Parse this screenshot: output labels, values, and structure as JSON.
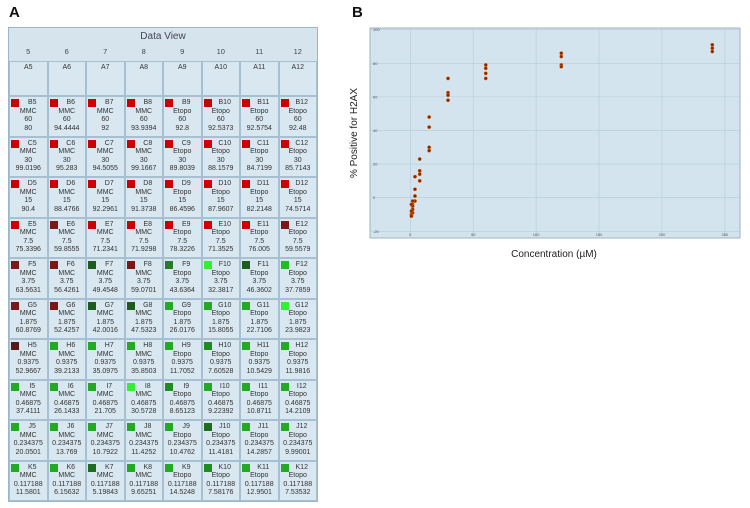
{
  "panel_labels": [
    "A",
    "B"
  ],
  "table": {
    "title": "Data View",
    "columns": [
      "5",
      "6",
      "7",
      "8",
      "9",
      "10",
      "11",
      "12"
    ],
    "row_a": [
      "A5",
      "A6",
      "A7",
      "A8",
      "A9",
      "A10",
      "A11",
      "A12"
    ],
    "rows": [
      {
        "cells": [
          {
            "name": "B5",
            "drug": "MMC",
            "conc": 60,
            "value": 80,
            "color": "#cc0000"
          },
          {
            "name": "B6",
            "drug": "MMC",
            "conc": 60,
            "value": 94.4444,
            "color": "#cc0000"
          },
          {
            "name": "B7",
            "drug": "MMC",
            "conc": 60,
            "value": 92,
            "color": "#cc0000"
          },
          {
            "name": "B8",
            "drug": "MMC",
            "conc": 60,
            "value": 93.9394,
            "color": "#cc0000"
          },
          {
            "name": "B9",
            "drug": "Etopo",
            "conc": 60,
            "value": 92.8,
            "color": "#cc0000"
          },
          {
            "name": "B10",
            "drug": "Etopo",
            "conc": 60,
            "value": 92.5373,
            "color": "#cc0000"
          },
          {
            "name": "B11",
            "drug": "Etopo",
            "conc": 60,
            "value": 92.5754,
            "color": "#cc0000"
          },
          {
            "name": "B12",
            "drug": "Etopo",
            "conc": 60,
            "value": 92.48,
            "color": "#cc0000"
          }
        ]
      },
      {
        "cells": [
          {
            "name": "C5",
            "drug": "MMC",
            "conc": 30,
            "value": 99.0196,
            "color": "#cc0000"
          },
          {
            "name": "C6",
            "drug": "MMC",
            "conc": 30,
            "value": 95.283,
            "color": "#cc0000"
          },
          {
            "name": "C7",
            "drug": "MMC",
            "conc": 30,
            "value": 94.5055,
            "color": "#cc0000"
          },
          {
            "name": "C8",
            "drug": "MMC",
            "conc": 30,
            "value": 99.1667,
            "color": "#cc0000"
          },
          {
            "name": "C9",
            "drug": "Etopo",
            "conc": 30,
            "value": 89.8039,
            "color": "#cc0000"
          },
          {
            "name": "C10",
            "drug": "Etopo",
            "conc": 30,
            "value": 88.1579,
            "color": "#cc0000"
          },
          {
            "name": "C11",
            "drug": "Etopo",
            "conc": 30,
            "value": 84.7199,
            "color": "#cc0000"
          },
          {
            "name": "C12",
            "drug": "Etopo",
            "conc": 30,
            "value": 85.7143,
            "color": "#cc0000"
          }
        ]
      },
      {
        "cells": [
          {
            "name": "D5",
            "drug": "MMC",
            "conc": 15,
            "value": 90.4,
            "color": "#cc0000"
          },
          {
            "name": "D6",
            "drug": "MMC",
            "conc": 15,
            "value": 88.4766,
            "color": "#cc0000"
          },
          {
            "name": "D7",
            "drug": "MMC",
            "conc": 15,
            "value": 92.2961,
            "color": "#cc0000"
          },
          {
            "name": "D8",
            "drug": "MMC",
            "conc": 15,
            "value": 91.3738,
            "color": "#cc0000"
          },
          {
            "name": "D9",
            "drug": "Etopo",
            "conc": 15,
            "value": 86.4596,
            "color": "#cc0000"
          },
          {
            "name": "D10",
            "drug": "Etopo",
            "conc": 15,
            "value": 87.9607,
            "color": "#cc0000"
          },
          {
            "name": "D11",
            "drug": "Etopo",
            "conc": 15,
            "value": 82.2148,
            "color": "#cc0000"
          },
          {
            "name": "D12",
            "drug": "Etopo",
            "conc": 15,
            "value": 74.5714,
            "color": "#cc0000"
          }
        ]
      },
      {
        "cells": [
          {
            "name": "E5",
            "drug": "MMC",
            "conc": 7.5,
            "value": 75.3396,
            "color": "#cc0000"
          },
          {
            "name": "E6",
            "drug": "MMC",
            "conc": 7.5,
            "value": 59.8555,
            "color": "#7a1818"
          },
          {
            "name": "E7",
            "drug": "MMC",
            "conc": 7.5,
            "value": 71.2341,
            "color": "#cc0000"
          },
          {
            "name": "E8",
            "drug": "MMC",
            "conc": 7.5,
            "value": 71.9298,
            "color": "#cc0000"
          },
          {
            "name": "E9",
            "drug": "Etopo",
            "conc": 7.5,
            "value": 78.3226,
            "color": "#cc0000"
          },
          {
            "name": "E10",
            "drug": "Etopo",
            "conc": 7.5,
            "value": 71.3525,
            "color": "#cc0000"
          },
          {
            "name": "E11",
            "drug": "Etopo",
            "conc": 7.5,
            "value": 76.005,
            "color": "#cc0000"
          },
          {
            "name": "E12",
            "drug": "Etopo",
            "conc": 7.5,
            "value": 59.5579,
            "color": "#7a1818"
          }
        ]
      },
      {
        "cells": [
          {
            "name": "F5",
            "drug": "MMC",
            "conc": 3.75,
            "value": 63.5631,
            "color": "#7a1818"
          },
          {
            "name": "F6",
            "drug": "MMC",
            "conc": 3.75,
            "value": 56.4261,
            "color": "#7a1818"
          },
          {
            "name": "F7",
            "drug": "MMC",
            "conc": 3.75,
            "value": 49.4548,
            "color": "#1e5c1e"
          },
          {
            "name": "F8",
            "drug": "MMC",
            "conc": 3.75,
            "value": 59.0701,
            "color": "#7a1818"
          },
          {
            "name": "F9",
            "drug": "Etopo",
            "conc": 3.75,
            "value": 43.6364,
            "color": "#2a7a2a"
          },
          {
            "name": "F10",
            "drug": "Etopo",
            "conc": 3.75,
            "value": 32.3817,
            "color": "#33ee33"
          },
          {
            "name": "F11",
            "drug": "Etopo",
            "conc": 3.75,
            "value": 46.3602,
            "color": "#1e5c1e"
          },
          {
            "name": "F12",
            "drug": "Etopo",
            "conc": 3.75,
            "value": 37.7859,
            "color": "#22bb22"
          }
        ]
      },
      {
        "cells": [
          {
            "name": "G5",
            "drug": "MMC",
            "conc": 1.875,
            "value": 60.8769,
            "color": "#7a1818"
          },
          {
            "name": "G6",
            "drug": "MMC",
            "conc": 1.875,
            "value": 52.4257,
            "color": "#7a1818"
          },
          {
            "name": "G7",
            "drug": "MMC",
            "conc": 1.875,
            "value": 42.0016,
            "color": "#1e5c1e"
          },
          {
            "name": "G8",
            "drug": "MMC",
            "conc": 1.875,
            "value": 47.5323,
            "color": "#1e5c1e"
          },
          {
            "name": "G9",
            "drug": "Etopo",
            "conc": 1.875,
            "value": 26.0176,
            "color": "#22aa22"
          },
          {
            "name": "G10",
            "drug": "Etopo",
            "conc": 1.875,
            "value": 15.8055,
            "color": "#22aa22"
          },
          {
            "name": "G11",
            "drug": "Etopo",
            "conc": 1.875,
            "value": 22.7106,
            "color": "#22aa22"
          },
          {
            "name": "G12",
            "drug": "Etopo",
            "conc": 1.875,
            "value": 23.9823,
            "color": "#33ee33"
          }
        ]
      },
      {
        "cells": [
          {
            "name": "H5",
            "drug": "MMC",
            "conc": 0.9375,
            "value": 52.9667,
            "color": "#5a1a1a"
          },
          {
            "name": "H6",
            "drug": "MMC",
            "conc": 0.9375,
            "value": 39.2133,
            "color": "#22aa22"
          },
          {
            "name": "H7",
            "drug": "MMC",
            "conc": 0.9375,
            "value": 35.0975,
            "color": "#22aa22"
          },
          {
            "name": "H8",
            "drug": "MMC",
            "conc": 0.9375,
            "value": 35.8503,
            "color": "#22aa22"
          },
          {
            "name": "H9",
            "drug": "Etopo",
            "conc": 0.9375,
            "value": 11.7052,
            "color": "#22aa22"
          },
          {
            "name": "H10",
            "drug": "Etopo",
            "conc": 0.9375,
            "value": 7.60528,
            "color": "#1e8c1e"
          },
          {
            "name": "H11",
            "drug": "Etopo",
            "conc": 0.9375,
            "value": 10.5429,
            "color": "#22aa22"
          },
          {
            "name": "H12",
            "drug": "Etopo",
            "conc": 0.9375,
            "value": 11.9816,
            "color": "#22aa22"
          }
        ]
      },
      {
        "cells": [
          {
            "name": "I5",
            "drug": "MMC",
            "conc": 0.46875,
            "value": 37.4111,
            "color": "#22aa22"
          },
          {
            "name": "I6",
            "drug": "MMC",
            "conc": 0.46875,
            "value": 26.1433,
            "color": "#22aa22"
          },
          {
            "name": "I7",
            "drug": "MMC",
            "conc": 0.46875,
            "value": 21.705,
            "color": "#22aa22"
          },
          {
            "name": "I8",
            "drug": "MMC",
            "conc": 0.46875,
            "value": 30.5728,
            "color": "#33ee33"
          },
          {
            "name": "I9",
            "drug": "Etopo",
            "conc": 0.46875,
            "value": 8.65123,
            "color": "#1e8c1e"
          },
          {
            "name": "I10",
            "drug": "Etopo",
            "conc": 0.46875,
            "value": 9.22392,
            "color": "#22aa22"
          },
          {
            "name": "I11",
            "drug": "Etopo",
            "conc": 0.46875,
            "value": 10.8711,
            "color": "#22aa22"
          },
          {
            "name": "I12",
            "drug": "Etopo",
            "conc": 0.46875,
            "value": 14.2109,
            "color": "#22aa22"
          }
        ]
      },
      {
        "cells": [
          {
            "name": "J5",
            "drug": "MMC",
            "conc": 0.234375,
            "value": 20.0501,
            "color": "#22aa22"
          },
          {
            "name": "J6",
            "drug": "MMC",
            "conc": 0.234375,
            "value": 13.769,
            "color": "#22aa22"
          },
          {
            "name": "J7",
            "drug": "MMC",
            "conc": 0.234375,
            "value": 10.7922,
            "color": "#22aa22"
          },
          {
            "name": "J8",
            "drug": "MMC",
            "conc": 0.234375,
            "value": 11.4252,
            "color": "#22aa22"
          },
          {
            "name": "J9",
            "drug": "Etopo",
            "conc": 0.234375,
            "value": 10.4762,
            "color": "#22aa22"
          },
          {
            "name": "J10",
            "drug": "Etopo",
            "conc": 0.234375,
            "value": 11.4181,
            "color": "#1e6c1e"
          },
          {
            "name": "J11",
            "drug": "Etopo",
            "conc": 0.234375,
            "value": 14.2857,
            "color": "#22aa22"
          },
          {
            "name": "J12",
            "drug": "Etopo",
            "conc": 0.234375,
            "value": 9.99001,
            "color": "#22aa22"
          }
        ]
      },
      {
        "cells": [
          {
            "name": "K5",
            "drug": "MMC",
            "conc": 0.117188,
            "value": 11.5801,
            "color": "#22aa22"
          },
          {
            "name": "K6",
            "drug": "MMC",
            "conc": 0.117188,
            "value": 6.15632,
            "color": "#22aa22"
          },
          {
            "name": "K7",
            "drug": "MMC",
            "conc": 0.117188,
            "value": 5.19843,
            "color": "#1e6c1e"
          },
          {
            "name": "K8",
            "drug": "MMC",
            "conc": 0.117188,
            "value": 9.65251,
            "color": "#22aa22"
          },
          {
            "name": "K9",
            "drug": "Etopo",
            "conc": 0.117188,
            "value": 14.5248,
            "color": "#22aa22"
          },
          {
            "name": "K10",
            "drug": "Etopo",
            "conc": 0.117188,
            "value": 7.58176,
            "color": "#1e8c1e"
          },
          {
            "name": "K11",
            "drug": "Etopo",
            "conc": 0.117188,
            "value": 12.9501,
            "color": "#22aa22"
          },
          {
            "name": "K12",
            "drug": "Etopo",
            "conc": 0.117188,
            "value": 7.53532,
            "color": "#22aa22"
          }
        ]
      }
    ]
  },
  "chart_data": {
    "type": "scatter",
    "x_label": "Concentration (µM)",
    "y_label": "% Positive for H2AX",
    "x": [
      240,
      240,
      240,
      120,
      120,
      120,
      120,
      60,
      60,
      60,
      60,
      30,
      30,
      30,
      30,
      15,
      15,
      15,
      15,
      7.5,
      7.5,
      7.5,
      7.5,
      3.75,
      3.75,
      3.75,
      3.75,
      1.875,
      1.875,
      1.875,
      1.875,
      1.875,
      0.9375,
      0.9375,
      0.9375,
      0.9375
    ],
    "values": [
      91,
      89,
      87,
      86,
      84,
      79,
      78,
      79,
      77,
      74,
      71,
      71,
      62.5,
      61,
      58,
      48,
      42,
      30,
      28,
      23,
      16,
      14,
      10,
      12.5,
      5,
      1,
      -2,
      -2,
      -4,
      -5,
      -7,
      -9,
      -4,
      -8,
      -10,
      -11
    ],
    "color": "#8b2200",
    "xlim": [
      -32,
      262
    ],
    "xticks": [
      0,
      50,
      100,
      150,
      200,
      250
    ],
    "ylim": [
      -24,
      101
    ],
    "yticks": [
      -20,
      0,
      20,
      40,
      60,
      80,
      100
    ],
    "grid": true
  }
}
